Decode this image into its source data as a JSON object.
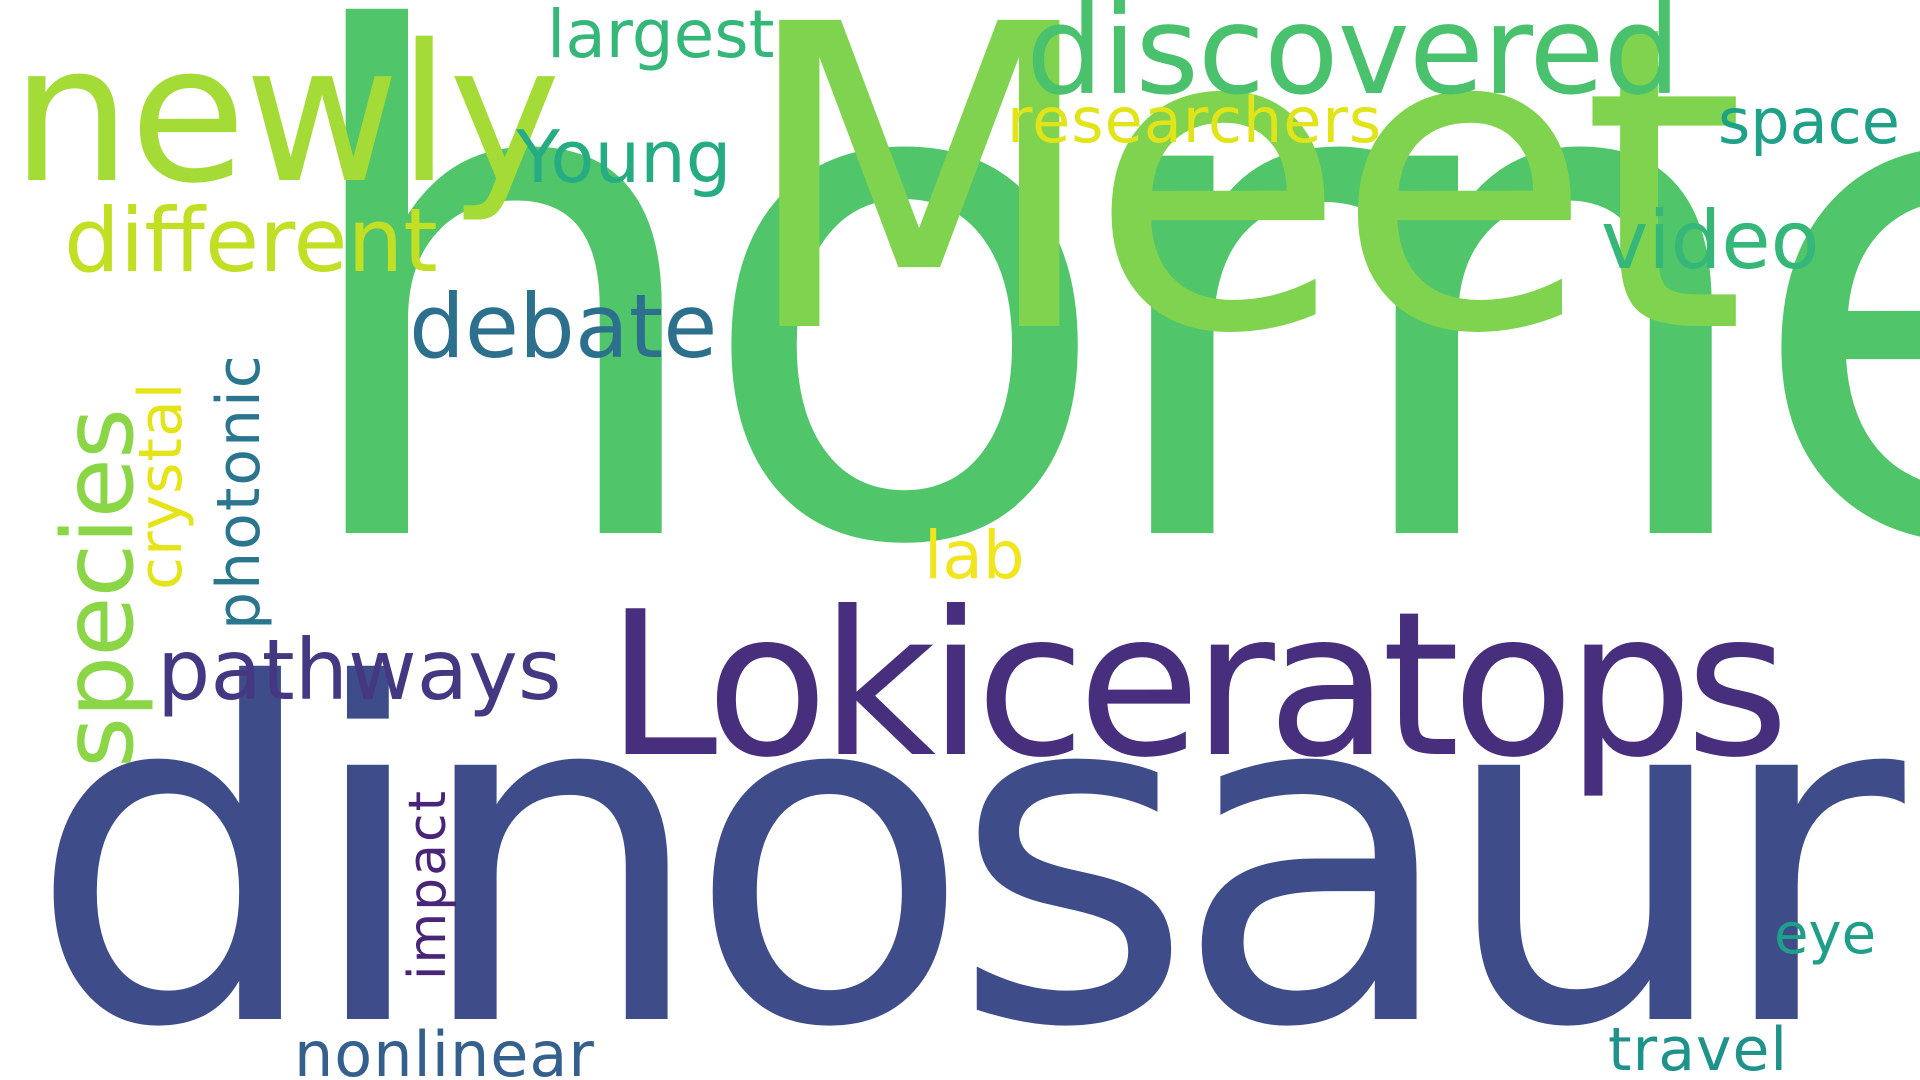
{
  "words": [
    {
      "id": "horned",
      "text": "horned",
      "color": "#51c56a",
      "rotated": false
    },
    {
      "id": "dinosaur",
      "text": "dinosaur",
      "color": "#3e4c8a",
      "rotated": false
    },
    {
      "id": "meet",
      "text": "Meet",
      "color": "#7fd34e",
      "rotated": false
    },
    {
      "id": "lokiceratops",
      "text": "Lokiceratops",
      "color": "#472f7d",
      "rotated": false
    },
    {
      "id": "newly",
      "text": "newly",
      "color": "#a5db36",
      "rotated": false
    },
    {
      "id": "discovered",
      "text": "discovered",
      "color": "#4ac16d",
      "rotated": false
    },
    {
      "id": "species",
      "text": "species",
      "color": "#8bd646",
      "rotated": true
    },
    {
      "id": "different",
      "text": "different",
      "color": "#c2df23",
      "rotated": false
    },
    {
      "id": "debate",
      "text": "debate",
      "color": "#2d708e",
      "rotated": false
    },
    {
      "id": "pathways",
      "text": "pathways",
      "color": "#453882",
      "rotated": false
    },
    {
      "id": "video",
      "text": "video",
      "color": "#35b779",
      "rotated": false
    },
    {
      "id": "young",
      "text": "Young",
      "color": "#25ac82",
      "rotated": false
    },
    {
      "id": "researchers",
      "text": "researchers",
      "color": "#e1e418",
      "rotated": false
    },
    {
      "id": "largest",
      "text": "largest",
      "color": "#35b779",
      "rotated": false
    },
    {
      "id": "space",
      "text": "space",
      "color": "#1fa187",
      "rotated": false
    },
    {
      "id": "crystal",
      "text": "crystal",
      "color": "#e5e419",
      "rotated": true
    },
    {
      "id": "photonic",
      "text": "photonic",
      "color": "#2a768e",
      "rotated": true
    },
    {
      "id": "lab",
      "text": "lab",
      "color": "#f1e51d",
      "rotated": false
    },
    {
      "id": "impact",
      "text": "impact",
      "color": "#482576",
      "rotated": true
    },
    {
      "id": "nonlinear",
      "text": "nonlinear",
      "color": "#355f8d",
      "rotated": false
    },
    {
      "id": "eye",
      "text": "eye",
      "color": "#1f9e89",
      "rotated": false
    },
    {
      "id": "travel",
      "text": "travel",
      "color": "#20928c",
      "rotated": false
    }
  ]
}
